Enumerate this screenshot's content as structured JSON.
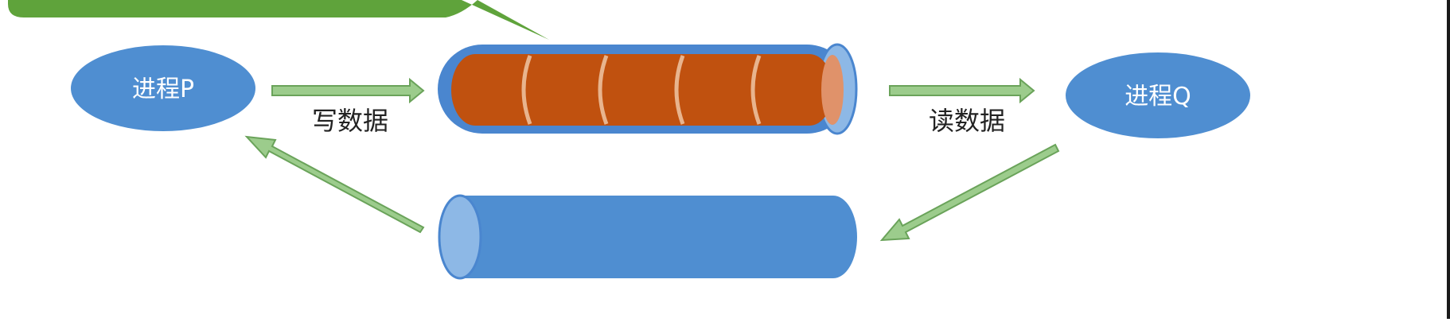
{
  "callout": {
    "text": "",
    "color": "#5fa33b"
  },
  "process_p": {
    "label": "进程P"
  },
  "process_q": {
    "label": "进程Q"
  },
  "write_label": "写数据",
  "read_label": "读数据",
  "colors": {
    "process_fill": "#4f8ed1",
    "pipe_outer": "#4a86cf",
    "pipe_inner": "#c0510f",
    "pipe_segment_line": "#e8b48e",
    "pipe_end_inner": "#e0926a",
    "pipe_end_outer": "#8db8e6",
    "arrow_fill": "#9ccc8c",
    "arrow_stroke": "#6aa35a"
  },
  "pipe_top": {
    "segments": 5
  }
}
